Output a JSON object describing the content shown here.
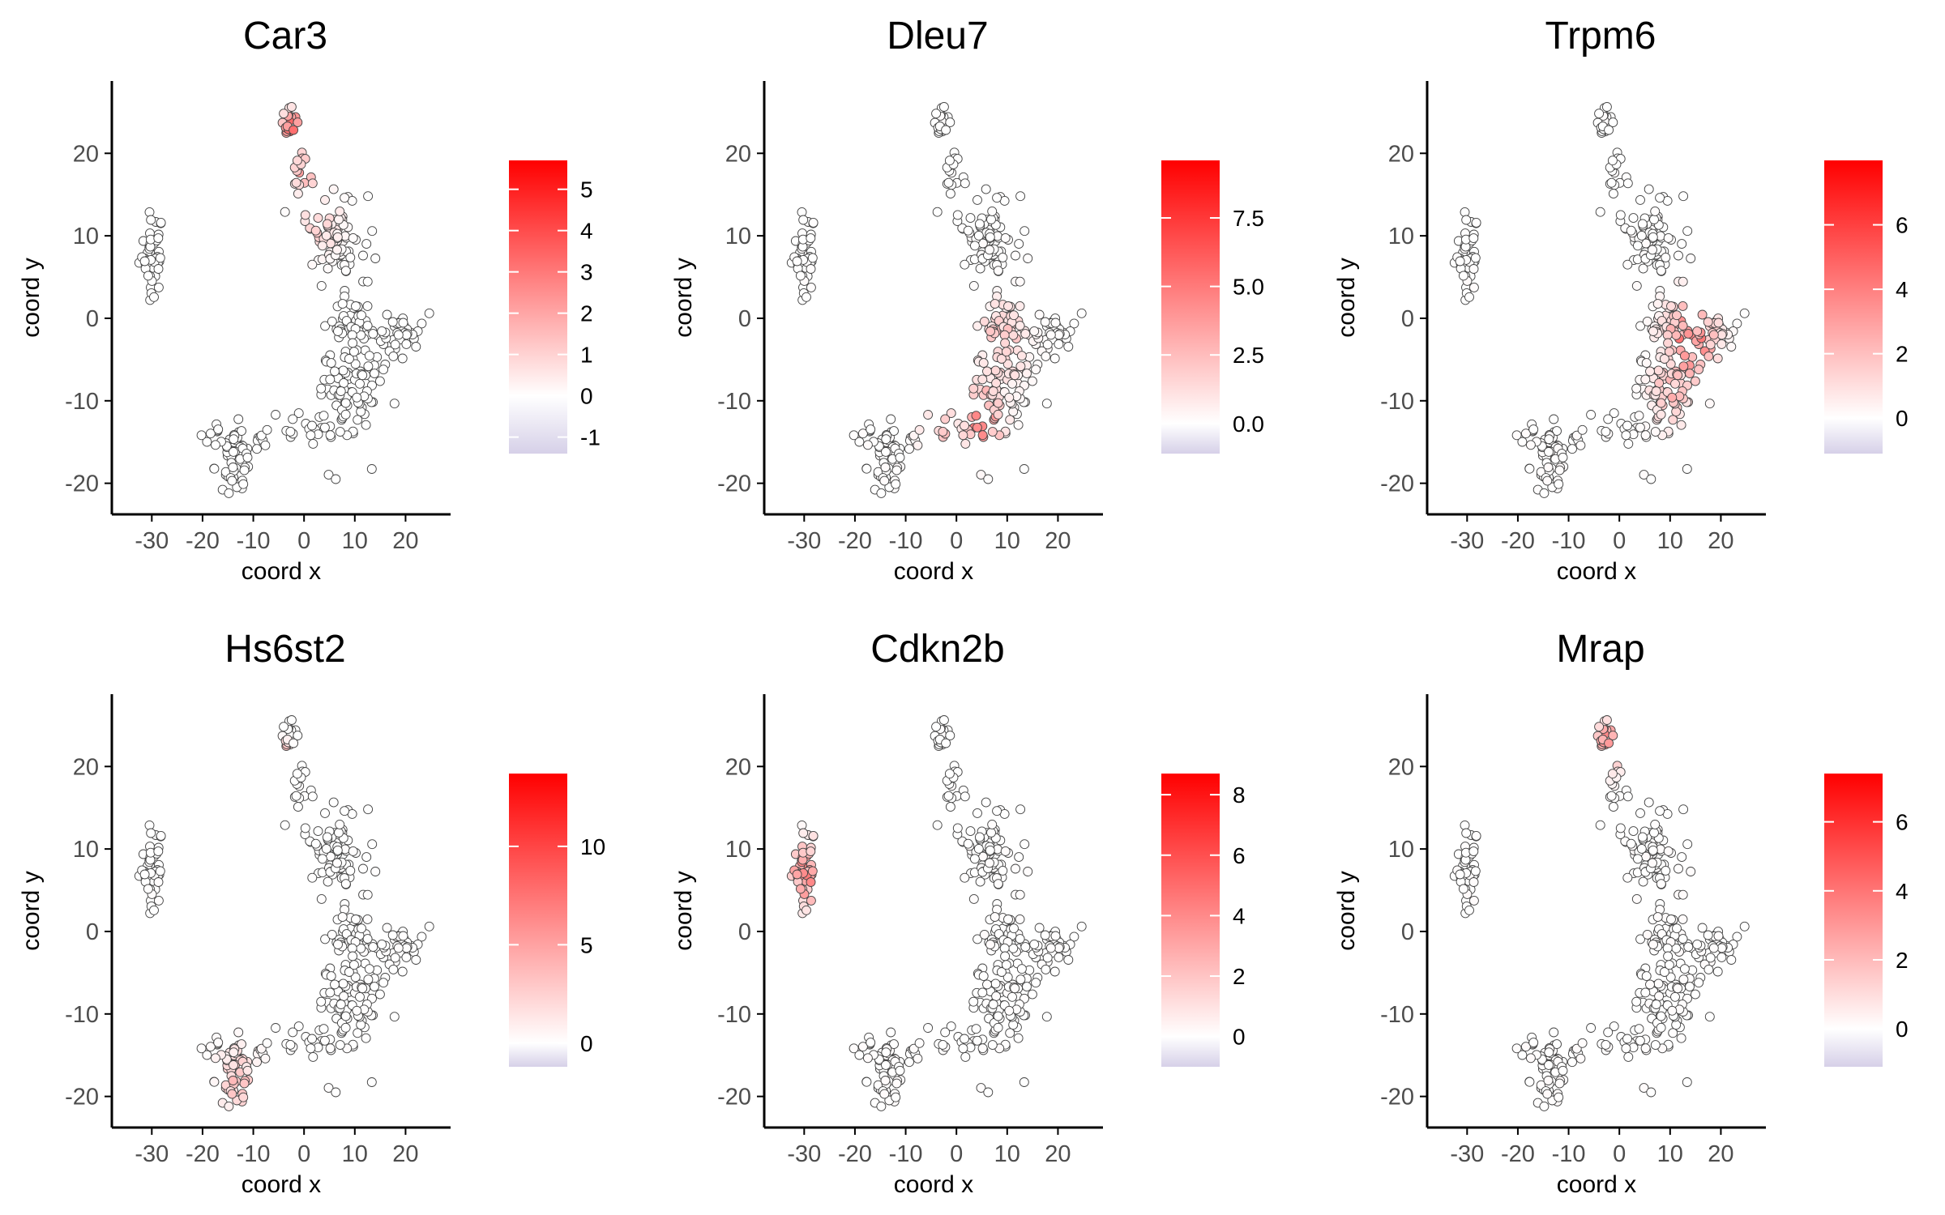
{
  "chart_data": [
    {
      "type": "scatter",
      "title": "Car3",
      "xlabel": "coord x",
      "ylabel": "coord y",
      "xlim": [
        -35,
        26
      ],
      "ylim": [
        -22,
        27
      ],
      "xticks": [
        -30,
        -20,
        -10,
        0,
        10,
        20
      ],
      "yticks": [
        -20,
        -10,
        0,
        10,
        20
      ],
      "xtick_labels": [
        "-30",
        "-20",
        "-10",
        "0",
        "10",
        "20"
      ],
      "ytick_labels": [
        "-20",
        "-10",
        "0",
        "10",
        "20"
      ],
      "legend": {
        "position": "right",
        "min": -1.4,
        "max": 5.7,
        "ticks": [
          -1,
          0,
          1,
          2,
          3,
          4,
          5
        ],
        "tick_labels": [
          "-1",
          "0",
          "1",
          "2",
          "3",
          "4",
          "5"
        ]
      },
      "grid": false,
      "hotspots": [
        {
          "x": -2,
          "y": 22.5,
          "value": 5.5,
          "r": 2.5
        },
        {
          "x": 0,
          "y": 18,
          "value": 2.5,
          "r": 3
        },
        {
          "x": 3,
          "y": 12,
          "value": 1.5,
          "r": 4
        }
      ],
      "default_value": -0.5
    },
    {
      "type": "scatter",
      "title": "Dleu7",
      "xlabel": "coord x",
      "ylabel": "coord y",
      "xlim": [
        -35,
        26
      ],
      "ylim": [
        -22,
        27
      ],
      "xticks": [
        -30,
        -20,
        -10,
        0,
        10,
        20
      ],
      "yticks": [
        -20,
        -10,
        0,
        10,
        20
      ],
      "xtick_labels": [
        "-30",
        "-20",
        "-10",
        "0",
        "10",
        "20"
      ],
      "ytick_labels": [
        "-20",
        "-10",
        "0",
        "10",
        "20"
      ],
      "legend": {
        "position": "right",
        "min": -1.1,
        "max": 9.6,
        "ticks": [
          0.0,
          2.5,
          5.0,
          7.5
        ],
        "tick_labels": [
          "0.0",
          "2.5",
          "5.0",
          "7.5"
        ]
      },
      "grid": false,
      "hotspots": [
        {
          "x": 5,
          "y": -12,
          "value": 6.5,
          "r": 4
        },
        {
          "x": 9,
          "y": -3,
          "value": 3,
          "r": 5
        },
        {
          "x": -3,
          "y": -13,
          "value": 3,
          "r": 4
        }
      ],
      "default_value": 0
    },
    {
      "type": "scatter",
      "title": "Trpm6",
      "xlabel": "coord x",
      "ylabel": "coord y",
      "xlim": [
        -35,
        26
      ],
      "ylim": [
        -22,
        27
      ],
      "xticks": [
        -30,
        -20,
        -10,
        0,
        10,
        20
      ],
      "yticks": [
        -20,
        -10,
        0,
        10,
        20
      ],
      "xtick_labels": [
        "-30",
        "-20",
        "-10",
        "0",
        "10",
        "20"
      ],
      "ytick_labels": [
        "-20",
        "-10",
        "0",
        "10",
        "20"
      ],
      "legend": {
        "position": "right",
        "min": -1.1,
        "max": 8.0,
        "ticks": [
          0,
          2,
          4,
          6
        ],
        "tick_labels": [
          "0",
          "2",
          "4",
          "6"
        ]
      },
      "grid": false,
      "hotspots": [
        {
          "x": 14,
          "y": -3,
          "value": 5.5,
          "r": 5
        },
        {
          "x": 10,
          "y": -9,
          "value": 3,
          "r": 4
        }
      ],
      "default_value": 0
    },
    {
      "type": "scatter",
      "title": "Hs6st2",
      "xlabel": "coord x",
      "ylabel": "coord y",
      "xlim": [
        -35,
        26
      ],
      "ylim": [
        -22,
        27
      ],
      "xticks": [
        -30,
        -20,
        -10,
        0,
        10,
        20
      ],
      "yticks": [
        -20,
        -10,
        0,
        10,
        20
      ],
      "xtick_labels": [
        "-30",
        "-20",
        "-10",
        "0",
        "10",
        "20"
      ],
      "ytick_labels": [
        "-20",
        "-10",
        "0",
        "10",
        "20"
      ],
      "legend": {
        "position": "right",
        "min": -1.2,
        "max": 13.7,
        "ticks": [
          0,
          5,
          10
        ],
        "tick_labels": [
          "0",
          "5",
          "10"
        ]
      },
      "grid": false,
      "hotspots": [
        {
          "x": -13,
          "y": -18,
          "value": 4,
          "r": 4
        },
        {
          "x": -4,
          "y": 22,
          "value": 12,
          "r": 1
        }
      ],
      "default_value": 0
    },
    {
      "type": "scatter",
      "title": "Cdkn2b",
      "xlabel": "coord x",
      "ylabel": "coord y",
      "xlim": [
        -35,
        26
      ],
      "ylim": [
        -22,
        27
      ],
      "xticks": [
        -30,
        -20,
        -10,
        0,
        10,
        20
      ],
      "yticks": [
        -20,
        -10,
        0,
        10,
        20
      ],
      "xtick_labels": [
        "-30",
        "-20",
        "-10",
        "0",
        "10",
        "20"
      ],
      "ytick_labels": [
        "-20",
        "-10",
        "0",
        "10",
        "20"
      ],
      "legend": {
        "position": "right",
        "min": -1.0,
        "max": 8.7,
        "ticks": [
          0,
          2,
          4,
          6,
          8
        ],
        "tick_labels": [
          "0",
          "2",
          "4",
          "6",
          "8"
        ]
      },
      "grid": false,
      "hotspots": [
        {
          "x": -29.5,
          "y": 7,
          "value": 5,
          "r": 4
        }
      ],
      "default_value": 0
    },
    {
      "type": "scatter",
      "title": "Mrap",
      "xlabel": "coord x",
      "ylabel": "coord y",
      "xlim": [
        -35,
        26
      ],
      "ylim": [
        -22,
        27
      ],
      "xticks": [
        -30,
        -20,
        -10,
        0,
        10,
        20
      ],
      "yticks": [
        -20,
        -10,
        0,
        10,
        20
      ],
      "xtick_labels": [
        "-30",
        "-20",
        "-10",
        "0",
        "10",
        "20"
      ],
      "ytick_labels": [
        "-20",
        "-10",
        "0",
        "10",
        "20"
      ],
      "legend": {
        "position": "right",
        "min": -1.1,
        "max": 7.4,
        "ticks": [
          0,
          2,
          4,
          6
        ],
        "tick_labels": [
          "0",
          "2",
          "4",
          "6"
        ]
      },
      "grid": false,
      "hotspots": [
        {
          "x": -2,
          "y": 22.5,
          "value": 5,
          "r": 3
        }
      ],
      "default_value": 0
    }
  ],
  "clusters": [
    {
      "cx": -30,
      "cy": 8,
      "sx": 1.2,
      "sy": 2.4,
      "n": 45
    },
    {
      "cx": -3,
      "cy": 23.5,
      "sx": 0.7,
      "sy": 1.2,
      "n": 18
    },
    {
      "cx": -1,
      "cy": 17,
      "sx": 0.9,
      "sy": 1.6,
      "n": 14
    },
    {
      "cx": 6,
      "cy": 10,
      "sx": 2.8,
      "sy": 2.5,
      "n": 85
    },
    {
      "cx": 10,
      "cy": 0,
      "sx": 2.5,
      "sy": 1.6,
      "n": 40
    },
    {
      "cx": 17,
      "cy": -2,
      "sx": 3.5,
      "sy": 1.6,
      "n": 45
    },
    {
      "cx": 8,
      "cy": -9,
      "sx": 3.0,
      "sy": 3.5,
      "n": 90
    },
    {
      "cx": 0,
      "cy": -13,
      "sx": 3.0,
      "sy": 1.0,
      "n": 20
    },
    {
      "cx": -8,
      "cy": -15,
      "sx": 2.0,
      "sy": 0.8,
      "n": 10
    },
    {
      "cx": -14,
      "cy": -17,
      "sx": 1.8,
      "sy": 2.0,
      "n": 50
    },
    {
      "cx": -17,
      "cy": -13.5,
      "sx": 0.8,
      "sy": 0.8,
      "n": 8
    }
  ],
  "colors": {
    "low": "#d6d0e8",
    "mid": "#ffffff",
    "high": "#ff0000",
    "point_stroke": "#444444",
    "axis": "#000000",
    "tick_text": "#4d4d4d"
  }
}
